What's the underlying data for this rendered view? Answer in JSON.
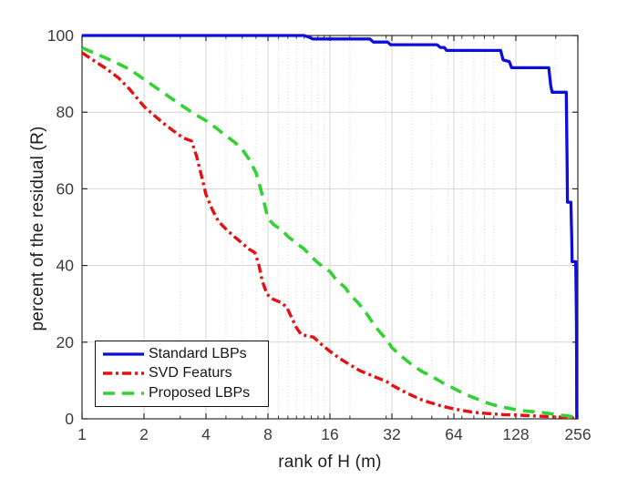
{
  "figure": {
    "background": "#ffffff",
    "axis_color": "#2b2b2b",
    "tick_label_color": "#3c3c3c",
    "grid_color": "#d6d6d6",
    "minor_grid_color": "#d2d2d2"
  },
  "chart_data": {
    "type": "line",
    "title": "",
    "xlabel": "rank of H (m)",
    "ylabel": "percent of the residual (R)",
    "x_scale": "log2",
    "xlim": [
      1,
      256
    ],
    "ylim": [
      0,
      100
    ],
    "xticks": [
      1,
      2,
      4,
      8,
      16,
      32,
      64,
      128,
      256
    ],
    "xtick_labels": [
      "1",
      "2",
      "4",
      "8",
      "16",
      "32",
      "64",
      "128",
      "256"
    ],
    "xticks_minor": [
      3,
      5,
      6,
      7,
      9,
      10,
      11,
      12,
      13,
      14,
      15,
      20,
      30,
      40,
      50,
      60,
      70,
      80,
      90,
      100,
      200
    ],
    "yticks": [
      0,
      20,
      40,
      60,
      80,
      100
    ],
    "ytick_labels": [
      "0",
      "20",
      "40",
      "60",
      "80",
      "100"
    ],
    "grid": true,
    "minor_grid": true,
    "legend_position": "southwest",
    "series": [
      {
        "name": "Standard LBPs",
        "color": "#0d0ddf",
        "style": "solid",
        "width": 3.3,
        "points": [
          [
            1,
            100
          ],
          [
            12,
            100
          ],
          [
            12.6,
            99.6
          ],
          [
            13.2,
            99.1
          ],
          [
            25,
            99.1
          ],
          [
            26,
            98.3
          ],
          [
            30.5,
            98.3
          ],
          [
            31.5,
            97.6
          ],
          [
            53,
            97.6
          ],
          [
            55,
            96.9
          ],
          [
            57.5,
            96.9
          ],
          [
            59,
            96.1
          ],
          [
            108,
            96.1
          ],
          [
            111,
            93.6
          ],
          [
            119,
            93.2
          ],
          [
            122,
            91.6
          ],
          [
            185,
            91.6
          ],
          [
            189,
            87
          ],
          [
            192,
            85.2
          ],
          [
            225,
            85.2
          ],
          [
            227,
            67
          ],
          [
            228,
            56.5
          ],
          [
            237,
            56.5
          ],
          [
            239,
            47
          ],
          [
            240,
            41
          ],
          [
            250,
            41
          ],
          [
            252,
            25
          ],
          [
            253,
            0
          ]
        ]
      },
      {
        "name": "SVD Featurs",
        "color": "#e51111",
        "style": "dashdot",
        "width": 3.4,
        "points": [
          [
            1,
            95.5
          ],
          [
            1.1,
            94
          ],
          [
            1.3,
            91.5
          ],
          [
            1.5,
            89
          ],
          [
            1.7,
            86
          ],
          [
            2,
            81.5
          ],
          [
            2.2,
            79.5
          ],
          [
            2.5,
            77
          ],
          [
            2.8,
            75
          ],
          [
            3.1,
            73.3
          ],
          [
            3.4,
            72.5
          ],
          [
            3.6,
            68.5
          ],
          [
            3.8,
            63.5
          ],
          [
            4,
            58.5
          ],
          [
            4.3,
            54.5
          ],
          [
            4.6,
            51.5
          ],
          [
            5,
            49.5
          ],
          [
            5.5,
            47.5
          ],
          [
            6,
            45.8
          ],
          [
            6.5,
            44.2
          ],
          [
            6.9,
            43.4
          ],
          [
            7.2,
            40.5
          ],
          [
            7.5,
            36
          ],
          [
            7.9,
            32.6
          ],
          [
            8.3,
            31.4
          ],
          [
            9.3,
            30.3
          ],
          [
            9.9,
            29
          ],
          [
            10.4,
            26.5
          ],
          [
            11,
            23.8
          ],
          [
            11.6,
            22
          ],
          [
            12.5,
            21.6
          ],
          [
            13.3,
            21.3
          ],
          [
            14.5,
            19.5
          ],
          [
            16,
            17.6
          ],
          [
            18,
            15.6
          ],
          [
            20,
            14.1
          ],
          [
            22.5,
            12.5
          ],
          [
            25,
            11.5
          ],
          [
            28,
            10.4
          ],
          [
            30,
            9.8
          ],
          [
            32,
            8.8
          ],
          [
            36,
            7.3
          ],
          [
            40,
            6.1
          ],
          [
            45,
            4.9
          ],
          [
            50,
            4.1
          ],
          [
            56,
            3.3
          ],
          [
            64,
            2.6
          ],
          [
            72,
            2.1
          ],
          [
            80,
            1.7
          ],
          [
            90,
            1.45
          ],
          [
            100,
            1.25
          ],
          [
            112,
            1.1
          ],
          [
            128,
            1.0
          ],
          [
            150,
            0.8
          ],
          [
            175,
            0.65
          ],
          [
            200,
            0.5
          ],
          [
            225,
            0.35
          ],
          [
            256,
            0.15
          ]
        ]
      },
      {
        "name": "Proposed LBPs",
        "color": "#31d231",
        "style": "dashed",
        "width": 3.6,
        "points": [
          [
            1,
            96.8
          ],
          [
            1.2,
            95
          ],
          [
            1.4,
            93.4
          ],
          [
            1.7,
            91.2
          ],
          [
            2,
            88.6
          ],
          [
            2.3,
            86.3
          ],
          [
            2.7,
            83.7
          ],
          [
            3,
            82
          ],
          [
            3.5,
            79.6
          ],
          [
            4,
            77.8
          ],
          [
            4.5,
            75.8
          ],
          [
            5,
            73.8
          ],
          [
            5.5,
            72.2
          ],
          [
            6,
            70.3
          ],
          [
            6.5,
            67.6
          ],
          [
            7,
            64.2
          ],
          [
            7.5,
            58.5
          ],
          [
            8,
            52.2
          ],
          [
            8.6,
            50.5
          ],
          [
            9.3,
            49.3
          ],
          [
            10,
            47.6
          ],
          [
            11,
            45.8
          ],
          [
            12,
            44.3
          ],
          [
            13,
            42.3
          ],
          [
            14,
            40.7
          ],
          [
            15,
            39.4
          ],
          [
            16,
            38.4
          ],
          [
            17,
            36.6
          ],
          [
            18,
            35.3
          ],
          [
            19,
            34.2
          ],
          [
            20,
            32.4
          ],
          [
            22,
            30.2
          ],
          [
            24,
            27.6
          ],
          [
            26,
            24.8
          ],
          [
            28,
            22.6
          ],
          [
            30,
            20.8
          ],
          [
            32,
            18.6
          ],
          [
            34,
            17.3
          ],
          [
            36,
            16.1
          ],
          [
            40,
            14.1
          ],
          [
            45,
            12.3
          ],
          [
            50,
            11.1
          ],
          [
            56,
            9.5
          ],
          [
            64,
            7.9
          ],
          [
            72,
            6.5
          ],
          [
            80,
            5.5
          ],
          [
            90,
            4.4
          ],
          [
            100,
            3.6
          ],
          [
            112,
            3.0
          ],
          [
            128,
            2.4
          ],
          [
            145,
            2.0
          ],
          [
            160,
            1.8
          ],
          [
            175,
            1.6
          ],
          [
            200,
            1.1
          ],
          [
            220,
            0.85
          ],
          [
            240,
            0.6
          ],
          [
            256,
            0.3
          ]
        ]
      }
    ]
  }
}
